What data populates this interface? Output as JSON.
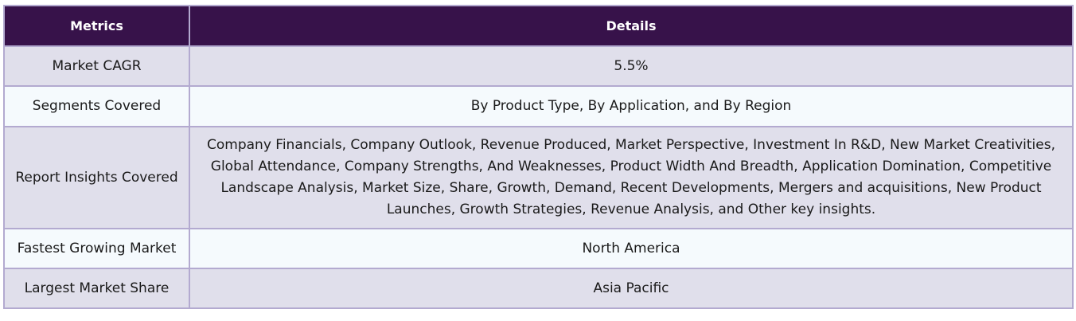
{
  "table": {
    "headers": [
      "Metrics",
      "Details"
    ],
    "rows": [
      {
        "metric": "Market CAGR",
        "detail": "5.5%"
      },
      {
        "metric": "Segments Covered",
        "detail": "By Product Type, By Application, and By Region"
      },
      {
        "metric": "Report Insights Covered",
        "detail": "Company Financials, Company Outlook, Revenue Produced, Market Perspective, Investment In R&D, New Market Creativities, Global Attendance, Company Strengths, And Weaknesses, Product Width And Breadth, Application Domination, Competitive Landscape Analysis, Market Size, Share, Growth, Demand, Recent Developments, Mergers and acquisitions, New Product Launches, Growth Strategies, Revenue Analysis, and Other key insights."
      },
      {
        "metric": "Fastest Growing Market",
        "detail": "North America"
      },
      {
        "metric": "Largest Market Share",
        "detail": "Asia Pacific"
      }
    ]
  },
  "colors": {
    "header_background": "#37124a",
    "header_text": "#ffffff",
    "row_odd": "#e0dfeb",
    "row_even": "#f5fafd",
    "border": "#b3aad0"
  }
}
